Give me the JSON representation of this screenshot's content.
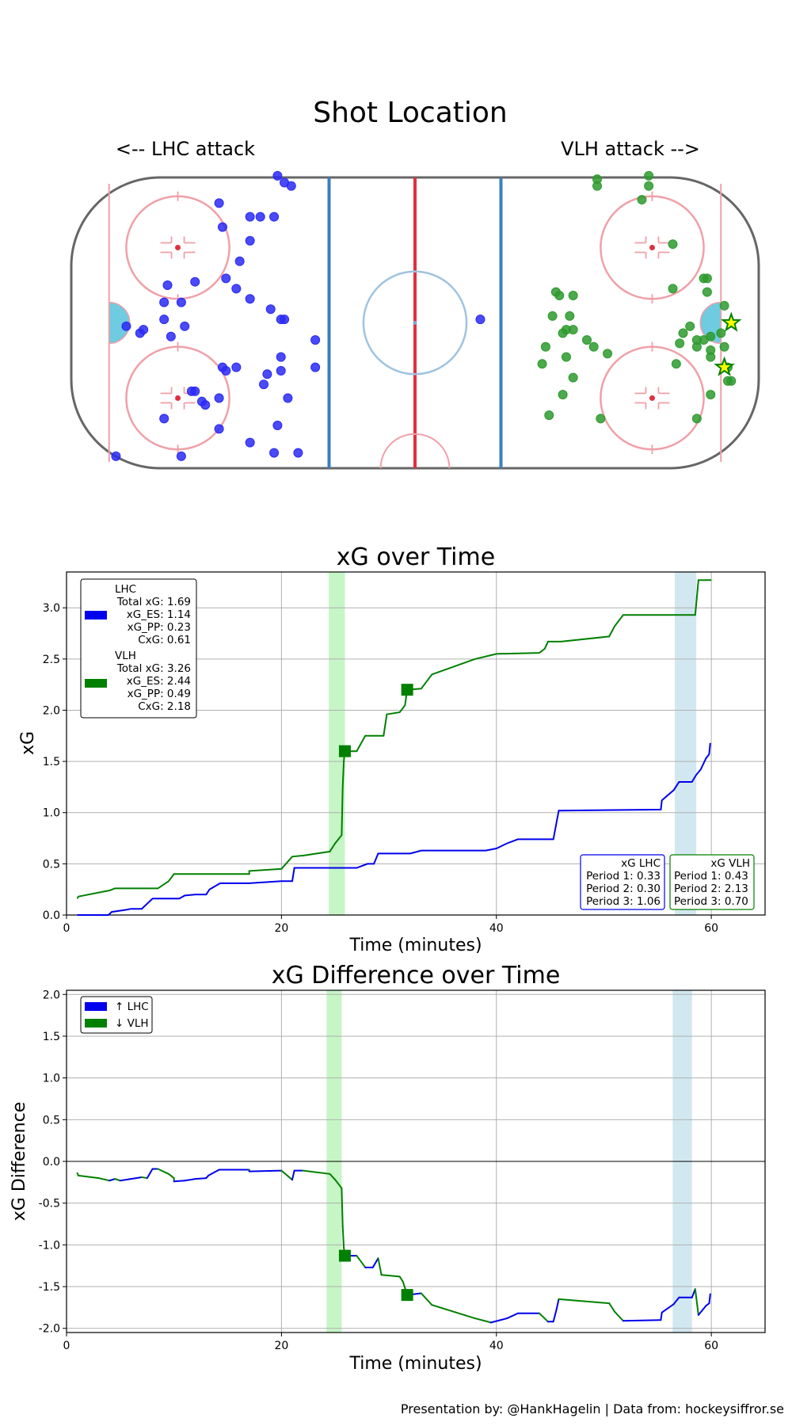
{
  "colors": {
    "lhc": "#0000ee",
    "vlh": "#008000",
    "lhc_dot": "#2a2af5",
    "vlh_dot": "#2e9a2e",
    "pp_green": "#c6f5c6",
    "pp_blue": "#d2e8f0",
    "star_fill": "#ffff00"
  },
  "footer": "Presentation by: @HankHagelin | Data from: hockeysiffror.se",
  "rink": {
    "title": "Shot Location",
    "left_label": "<-- LHC attack",
    "right_label": "VLH attack -->"
  },
  "chart_data": [
    {
      "type": "scatter",
      "title": "Shot Location",
      "note": "shot coordinates in rink units (x: -100..100 ft, y: -42.5..42.5 ft)",
      "series": [
        {
          "name": "LHC",
          "points": [
            [
              -87,
              -39
            ],
            [
              -84,
              -1
            ],
            [
              -80,
              -3
            ],
            [
              -79,
              -2
            ],
            [
              -73,
              -28
            ],
            [
              -73,
              6
            ],
            [
              -73,
              1
            ],
            [
              -72,
              11
            ],
            [
              -71,
              -4
            ],
            [
              -68,
              6
            ],
            [
              -67,
              -1
            ],
            [
              -68,
              -39
            ],
            [
              -64,
              12
            ],
            [
              -65,
              -20
            ],
            [
              -64,
              -20
            ],
            [
              -62,
              -23
            ],
            [
              -61,
              -24
            ],
            [
              -57,
              -22
            ],
            [
              -57,
              -31
            ],
            [
              -55,
              13
            ],
            [
              -56,
              28
            ],
            [
              -57,
              35
            ],
            [
              -56,
              -13
            ],
            [
              -55,
              -14
            ],
            [
              -52,
              -13
            ],
            [
              -48,
              -35
            ],
            [
              -48,
              7
            ],
            [
              -52,
              10
            ],
            [
              -51,
              18
            ],
            [
              -48,
              24
            ],
            [
              -48,
              31
            ],
            [
              -45,
              31
            ],
            [
              -43,
              -15
            ],
            [
              -44,
              -18
            ],
            [
              -42,
              4
            ],
            [
              -41,
              -38
            ],
            [
              -39,
              -10
            ],
            [
              -39,
              -14
            ],
            [
              -39,
              1
            ],
            [
              -40,
              -30
            ],
            [
              -38,
              1
            ],
            [
              -41,
              31
            ],
            [
              -40,
              43
            ],
            [
              -36,
              40
            ],
            [
              -38,
              41
            ],
            [
              -37,
              -22
            ],
            [
              -34,
              -38
            ],
            [
              -29,
              -5
            ],
            [
              -29,
              -13
            ],
            [
              19,
              1
            ]
          ]
        },
        {
          "name": "VLH",
          "points": [
            [
              53,
              42
            ],
            [
              53,
              40
            ],
            [
              54,
              -28
            ],
            [
              56,
              -9
            ],
            [
              46,
              -16
            ],
            [
              44,
              -10
            ],
            [
              43,
              -21
            ],
            [
              39,
              -27
            ],
            [
              38,
              -7
            ],
            [
              37,
              -12
            ],
            [
              41,
              9
            ],
            [
              40,
              2
            ],
            [
              42,
              8
            ],
            [
              43,
              -3
            ],
            [
              44,
              -2
            ],
            [
              46,
              -2
            ],
            [
              45,
              2
            ],
            [
              46,
              8
            ],
            [
              50,
              -5
            ],
            [
              52,
              -7
            ],
            [
              68,
              43
            ],
            [
              68,
              40
            ],
            [
              66,
              36
            ],
            [
              75,
              23
            ],
            [
              77,
              -6
            ],
            [
              75,
              10
            ],
            [
              76,
              -12
            ],
            [
              82,
              -28
            ],
            [
              82,
              -7
            ],
            [
              80,
              -1
            ],
            [
              82,
              -5
            ],
            [
              84,
              -5
            ],
            [
              86,
              -10
            ],
            [
              86,
              -8
            ],
            [
              86,
              -21
            ],
            [
              92,
              -17
            ],
            [
              85,
              13
            ],
            [
              84,
              13
            ],
            [
              89,
              -3
            ],
            [
              86,
              -4
            ],
            [
              91,
              -17
            ],
            [
              91,
              -13
            ],
            [
              90,
              -7
            ],
            [
              78,
              -3
            ],
            [
              90,
              5
            ],
            [
              85,
              9
            ]
          ]
        }
      ],
      "goals": [
        {
          "team": "VLH",
          "x": 92,
          "y": 0
        },
        {
          "team": "VLH",
          "x": 90,
          "y": -13
        }
      ]
    },
    {
      "type": "line",
      "title": "xG over Time",
      "xlabel": "Time (minutes)",
      "ylabel": "xG",
      "xlim": [
        0,
        65
      ],
      "ylim": [
        0,
        3.35
      ],
      "xticks": [
        0,
        20,
        40,
        60
      ],
      "yticks": [
        0.0,
        0.5,
        1.0,
        1.5,
        2.0,
        2.5,
        3.0
      ],
      "pp_spans": [
        {
          "team": "VLH",
          "start": 24.4,
          "end": 25.9
        },
        {
          "team": "LHC",
          "start": 56.6,
          "end": 58.6
        }
      ],
      "series": [
        {
          "name": "LHC",
          "points": [
            [
              1,
              0
            ],
            [
              3.9,
              0
            ],
            [
              4.2,
              0.03
            ],
            [
              5.5,
              0.05
            ],
            [
              6,
              0.06
            ],
            [
              7,
              0.06
            ],
            [
              8,
              0.16
            ],
            [
              10.5,
              0.16
            ],
            [
              11,
              0.19
            ],
            [
              12,
              0.2
            ],
            [
              13,
              0.2
            ],
            [
              13.3,
              0.25
            ],
            [
              14.3,
              0.31
            ],
            [
              17,
              0.31
            ],
            [
              20,
              0.33
            ],
            [
              21,
              0.33
            ],
            [
              21.2,
              0.46
            ],
            [
              27,
              0.46
            ],
            [
              28,
              0.5
            ],
            [
              28.6,
              0.5
            ],
            [
              29,
              0.6
            ],
            [
              32,
              0.6
            ],
            [
              33,
              0.63
            ],
            [
              39,
              0.63
            ],
            [
              40,
              0.65
            ],
            [
              41,
              0.7
            ],
            [
              42,
              0.74
            ],
            [
              45.3,
              0.74
            ],
            [
              45.6,
              0.91
            ],
            [
              45.8,
              1.02
            ],
            [
              55.3,
              1.03
            ],
            [
              55.4,
              1.12
            ],
            [
              56.5,
              1.22
            ],
            [
              57,
              1.3
            ],
            [
              58.2,
              1.3
            ],
            [
              58.6,
              1.37
            ],
            [
              59,
              1.42
            ],
            [
              59.5,
              1.53
            ],
            [
              59.8,
              1.57
            ],
            [
              59.9,
              1.68
            ]
          ]
        },
        {
          "name": "VLH",
          "points": [
            [
              1,
              0.16
            ],
            [
              1.1,
              0.18
            ],
            [
              3,
              0.22
            ],
            [
              4,
              0.24
            ],
            [
              4.5,
              0.26
            ],
            [
              8.5,
              0.26
            ],
            [
              9.5,
              0.33
            ],
            [
              10,
              0.4
            ],
            [
              17,
              0.4
            ],
            [
              17,
              0.43
            ],
            [
              20,
              0.45
            ],
            [
              21,
              0.57
            ],
            [
              22,
              0.58
            ],
            [
              24.5,
              0.62
            ],
            [
              25,
              0.7
            ],
            [
              25.6,
              0.78
            ],
            [
              25.7,
              1.25
            ],
            [
              25.8,
              1.5
            ],
            [
              25.9,
              1.6
            ],
            [
              27,
              1.6
            ],
            [
              27.8,
              1.75
            ],
            [
              29.5,
              1.75
            ],
            [
              29.8,
              1.96
            ],
            [
              31,
              1.98
            ],
            [
              31.3,
              2.02
            ],
            [
              31.5,
              2.05
            ],
            [
              31.7,
              2.2
            ],
            [
              33,
              2.21
            ],
            [
              34,
              2.35
            ],
            [
              38,
              2.5
            ],
            [
              40,
              2.55
            ],
            [
              44,
              2.56
            ],
            [
              44.5,
              2.6
            ],
            [
              44.8,
              2.67
            ],
            [
              46,
              2.67
            ],
            [
              50.5,
              2.72
            ],
            [
              51,
              2.82
            ],
            [
              51.8,
              2.93
            ],
            [
              58.5,
              2.93
            ],
            [
              58.8,
              3.27
            ],
            [
              60,
              3.27
            ]
          ]
        }
      ],
      "goals": [
        {
          "team": "VLH",
          "time": 25.9,
          "xg": 1.6
        },
        {
          "team": "VLH",
          "time": 31.7,
          "xg": 2.2
        }
      ],
      "legend": {
        "LHC": {
          "title": "LHC",
          "lines": [
            "Total xG: 1.69",
            "xG_ES: 1.14",
            "xG_PP: 0.23",
            "CxG: 0.61"
          ]
        },
        "VLH": {
          "title": "VLH",
          "lines": [
            "Total xG: 3.26",
            "xG_ES: 2.44",
            "xG_PP: 0.49",
            "CxG: 2.18"
          ]
        }
      },
      "period_boxes": {
        "LHC": [
          "xG LHC",
          "Period 1: 0.33",
          "Period 2: 0.30",
          "Period 3: 1.06"
        ],
        "VLH": [
          "xG VLH",
          "Period 1: 0.43",
          "Period 2: 2.13",
          "Period 3: 0.70"
        ]
      }
    },
    {
      "type": "line",
      "title": "xG Difference over Time",
      "xlabel": "Time (minutes)",
      "ylabel": "xG Difference",
      "xlim": [
        0,
        65
      ],
      "ylim": [
        -2.05,
        2.05
      ],
      "xticks": [
        0,
        20,
        40,
        60
      ],
      "yticks": [
        -2.0,
        -1.5,
        -1.0,
        -0.5,
        0.0,
        0.5,
        1.0,
        1.5,
        2.0
      ],
      "pp_spans": [
        {
          "team": "VLH",
          "start": 24.2,
          "end": 25.6
        },
        {
          "team": "LHC",
          "start": 56.4,
          "end": 58.2
        }
      ],
      "legend": [
        "↑ LHC",
        "↓ VLH"
      ],
      "series": [
        {
          "name": "Difference",
          "points": [
            [
              1,
              -0.14
            ],
            [
              1.1,
              -0.17
            ],
            [
              3,
              -0.2
            ],
            [
              4,
              -0.23
            ],
            [
              4.5,
              -0.21
            ],
            [
              5,
              -0.23
            ],
            [
              6,
              -0.21
            ],
            [
              7,
              -0.19
            ],
            [
              7.5,
              -0.2
            ],
            [
              8,
              -0.09
            ],
            [
              8.5,
              -0.09
            ],
            [
              9.5,
              -0.15
            ],
            [
              10,
              -0.2
            ],
            [
              10,
              -0.24
            ],
            [
              11,
              -0.23
            ],
            [
              12,
              -0.21
            ],
            [
              13,
              -0.2
            ],
            [
              13.2,
              -0.17
            ],
            [
              14.2,
              -0.1
            ],
            [
              17,
              -0.1
            ],
            [
              17,
              -0.12
            ],
            [
              20,
              -0.11
            ],
            [
              21,
              -0.22
            ],
            [
              21.2,
              -0.11
            ],
            [
              22,
              -0.11
            ],
            [
              24.5,
              -0.15
            ],
            [
              25,
              -0.22
            ],
            [
              25.6,
              -0.32
            ],
            [
              25.7,
              -0.78
            ],
            [
              25.8,
              -1.03
            ],
            [
              25.9,
              -1.13
            ],
            [
              27,
              -1.13
            ],
            [
              27.8,
              -1.27
            ],
            [
              28.5,
              -1.27
            ],
            [
              29,
              -1.16
            ],
            [
              29.3,
              -1.36
            ],
            [
              31,
              -1.38
            ],
            [
              31.3,
              -1.44
            ],
            [
              31.7,
              -1.6
            ],
            [
              33,
              -1.58
            ],
            [
              34,
              -1.72
            ],
            [
              38,
              -1.88
            ],
            [
              39.5,
              -1.93
            ],
            [
              41,
              -1.88
            ],
            [
              42,
              -1.82
            ],
            [
              44,
              -1.82
            ],
            [
              44.8,
              -1.92
            ],
            [
              45.3,
              -1.92
            ],
            [
              45.6,
              -1.77
            ],
            [
              45.8,
              -1.65
            ],
            [
              50.5,
              -1.7
            ],
            [
              51,
              -1.8
            ],
            [
              51.8,
              -1.91
            ],
            [
              55.3,
              -1.9
            ],
            [
              55.4,
              -1.81
            ],
            [
              56.5,
              -1.71
            ],
            [
              57,
              -1.63
            ],
            [
              58.2,
              -1.63
            ],
            [
              58.5,
              -1.53
            ],
            [
              58.8,
              -1.84
            ],
            [
              59.5,
              -1.73
            ],
            [
              59.8,
              -1.7
            ],
            [
              59.9,
              -1.59
            ]
          ]
        }
      ],
      "goals": [
        {
          "team": "VLH",
          "time": 25.9,
          "diff": -1.13
        },
        {
          "team": "VLH",
          "time": 31.7,
          "diff": -1.6
        }
      ]
    }
  ]
}
